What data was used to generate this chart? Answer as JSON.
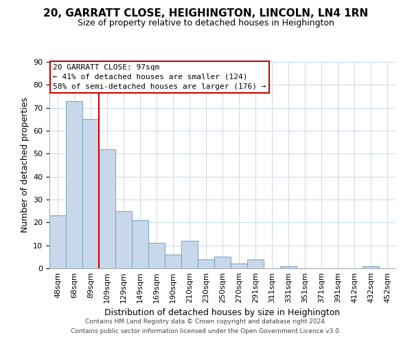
{
  "title": "20, GARRATT CLOSE, HEIGHINGTON, LINCOLN, LN4 1RN",
  "subtitle": "Size of property relative to detached houses in Heighington",
  "xlabel": "Distribution of detached houses by size in Heighington",
  "ylabel": "Number of detached properties",
  "footer1": "Contains HM Land Registry data © Crown copyright and database right 2024.",
  "footer2": "Contains public sector information licensed under the Open Government Licence v3.0.",
  "categories": [
    "48sqm",
    "68sqm",
    "89sqm",
    "109sqm",
    "129sqm",
    "149sqm",
    "169sqm",
    "190sqm",
    "210sqm",
    "230sqm",
    "250sqm",
    "270sqm",
    "291sqm",
    "311sqm",
    "331sqm",
    "351sqm",
    "371sqm",
    "391sqm",
    "412sqm",
    "432sqm",
    "452sqm"
  ],
  "values": [
    23,
    73,
    65,
    52,
    25,
    21,
    11,
    6,
    12,
    4,
    5,
    2,
    4,
    0,
    1,
    0,
    0,
    0,
    0,
    1,
    0
  ],
  "bar_color": "#c8d8ea",
  "bar_edge_color": "#7aaac8",
  "vline_color": "#cc0000",
  "vline_x_index": 2,
  "annotation_text_line1": "20 GARRATT CLOSE: 97sqm",
  "annotation_text_line2": "← 41% of detached houses are smaller (124)",
  "annotation_text_line3": "58% of semi-detached houses are larger (176) →",
  "annotation_box_color": "#ffffff",
  "annotation_box_edge": "#cc0000",
  "ylim": [
    0,
    90
  ],
  "yticks": [
    0,
    10,
    20,
    30,
    40,
    50,
    60,
    70,
    80,
    90
  ],
  "bg_color": "#ffffff",
  "grid_color": "#c8d8e8",
  "title_fontsize": 11,
  "subtitle_fontsize": 9,
  "xlabel_fontsize": 9,
  "ylabel_fontsize": 9,
  "tick_fontsize": 8,
  "footer_fontsize": 6.5
}
